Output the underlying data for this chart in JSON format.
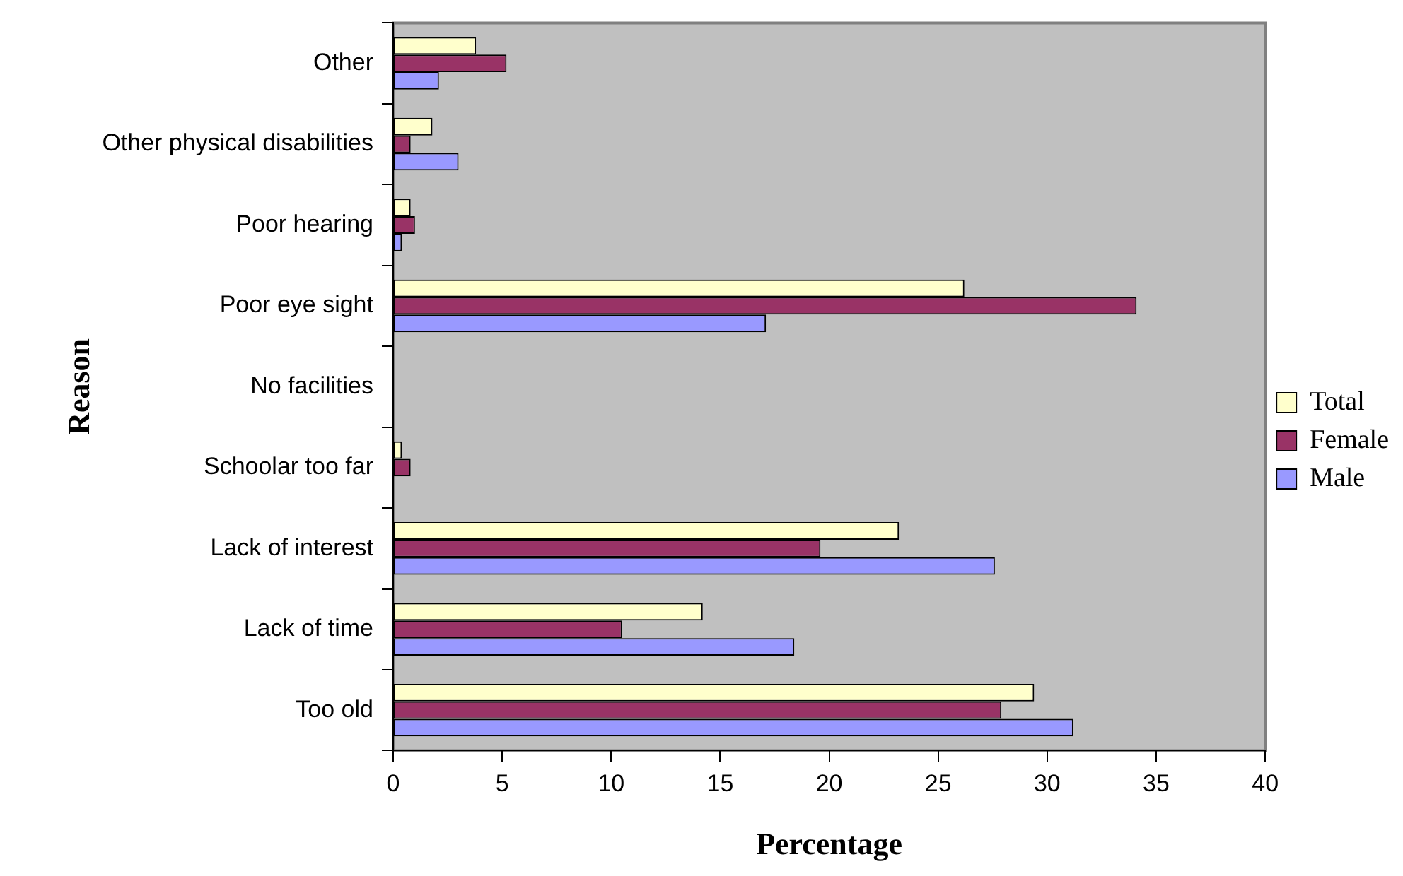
{
  "chart_data": {
    "type": "bar",
    "orientation": "horizontal",
    "xlabel": "Percentage",
    "ylabel": "Reason",
    "categories": [
      "Other",
      "Other physical disabilities",
      "Poor hearing",
      "Poor eye sight",
      "No facilities",
      "Schoolar too far",
      "Lack of interest",
      "Lack of time",
      "Too old"
    ],
    "series": [
      {
        "name": "Total",
        "color": "#ffffcc",
        "values": [
          3.8,
          1.8,
          0.8,
          26.2,
          0,
          0.4,
          23.2,
          14.2,
          29.4
        ]
      },
      {
        "name": "Female",
        "color": "#993366",
        "values": [
          5.2,
          0.8,
          1.0,
          34.1,
          0,
          0.8,
          19.6,
          10.5,
          27.9
        ]
      },
      {
        "name": "Male",
        "color": "#9999ff",
        "values": [
          2.1,
          3.0,
          0.4,
          17.1,
          0,
          0,
          27.6,
          18.4,
          31.2
        ]
      }
    ],
    "xlim": [
      0,
      40
    ],
    "xticks": [
      0,
      5,
      10,
      15,
      20,
      25,
      30,
      35,
      40
    ],
    "grid": false,
    "legend": "right"
  }
}
